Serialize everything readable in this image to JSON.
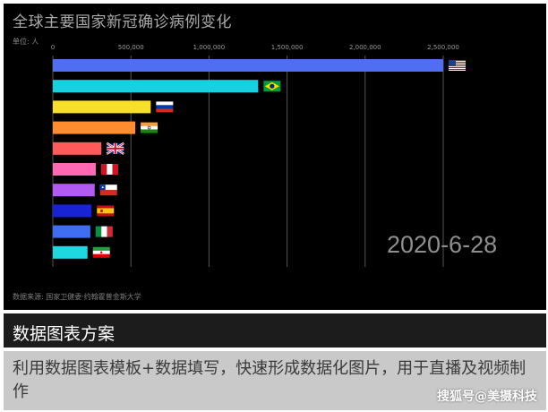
{
  "chart": {
    "title": "全球主要国家新冠确诊病例变化",
    "unit": "单位: 人",
    "date": "2020-6-28",
    "source": "数据来源: 国家卫健委·约翰霍普金斯大学"
  },
  "banner": {
    "title": "数据图表方案"
  },
  "description": {
    "text": "利用数据图表模板+数据填写，快速形成数据化图片，用于直播及视频制作"
  },
  "watermark": {
    "text": "搜狐号@美摄科技"
  },
  "colors": {
    "background": "#000000",
    "grid": "#555555",
    "banner_bg": "#1c1c1c",
    "desc_bg": "#c9c9c9"
  },
  "chart_data": {
    "type": "bar",
    "orientation": "horizontal",
    "x_ticks": [
      "0",
      "500,000",
      "1,000,000",
      "1,500,000",
      "2,000,000",
      "2,500,000"
    ],
    "x_tick_values": [
      0,
      500000,
      1000000,
      1500000,
      2000000,
      2500000
    ],
    "xlim": [
      0,
      2500000
    ],
    "grid": true,
    "bars": [
      {
        "country": "USA",
        "flag": "us-flag-icon",
        "color": "#4f6ef2",
        "value": 2500000
      },
      {
        "country": "Brazil",
        "flag": "brazil-flag-icon",
        "color": "#16d2e0",
        "value": 1315000
      },
      {
        "country": "Russia",
        "flag": "russia-flag-icon",
        "color": "#f7e02a",
        "value": 627000
      },
      {
        "country": "India",
        "flag": "india-flag-icon",
        "color": "#ff8c2e",
        "value": 528000
      },
      {
        "country": "UK",
        "flag": "uk-flag-icon",
        "color": "#ff5a5a",
        "value": 311000
      },
      {
        "country": "Peru",
        "flag": "peru-flag-icon",
        "color": "#ff69b4",
        "value": 275000
      },
      {
        "country": "Chile",
        "flag": "chile-flag-icon",
        "color": "#b25af2",
        "value": 268000
      },
      {
        "country": "Spain",
        "flag": "spain-flag-icon",
        "color": "#1a22d6",
        "value": 248000
      },
      {
        "country": "Italy",
        "flag": "italy-flag-icon",
        "color": "#3f6ef2",
        "value": 240000
      },
      {
        "country": "Iran",
        "flag": "iran-flag-icon",
        "color": "#1ed7e0",
        "value": 222000
      }
    ]
  }
}
